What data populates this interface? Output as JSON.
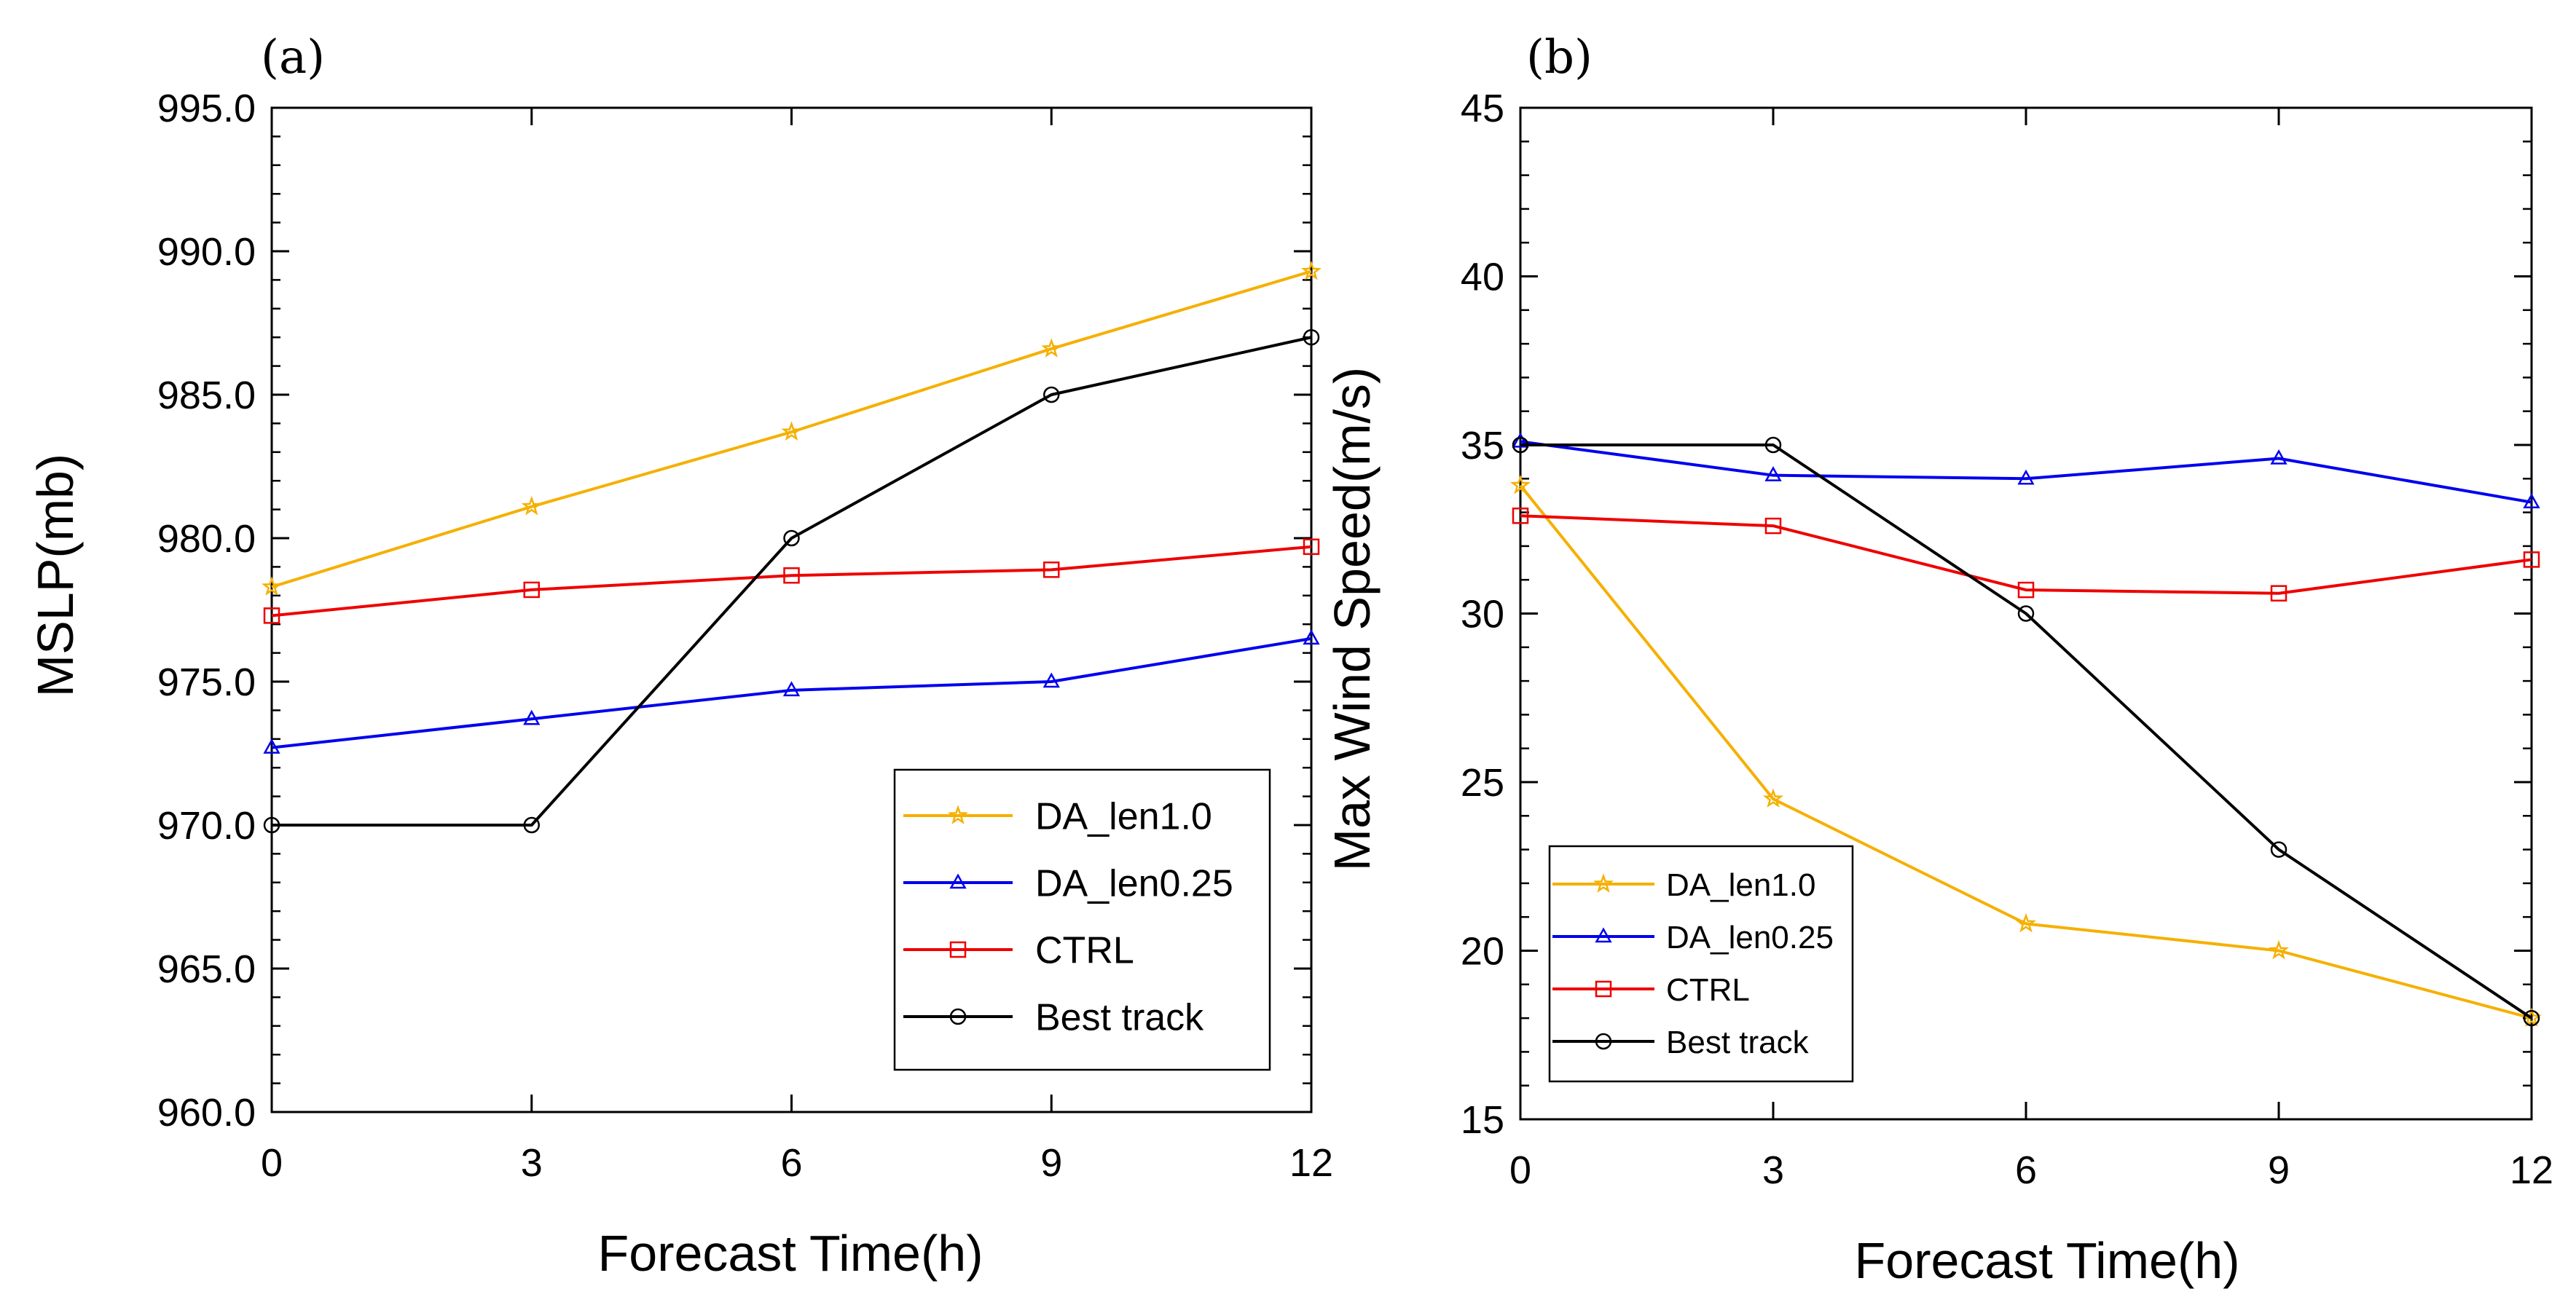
{
  "chart_data": [
    {
      "type": "line",
      "panel_label": "(a)",
      "xlabel": "Forecast Time(h)",
      "ylabel": "MSLP(mb)",
      "x": [
        0,
        3,
        6,
        9,
        12
      ],
      "xticks": [
        "0",
        "3",
        "6",
        "9",
        "12"
      ],
      "yticks": [
        "960.0",
        "965.0",
        "970.0",
        "975.0",
        "980.0",
        "985.0",
        "990.0",
        "995.0"
      ],
      "xlim": [
        0,
        12
      ],
      "ylim": [
        960,
        995
      ],
      "legend_position": "bottom-right",
      "series": [
        {
          "name": "DA_len1.0",
          "color": "#F5B000",
          "marker": "star",
          "values": [
            978.3,
            981.1,
            983.7,
            986.6,
            989.3
          ]
        },
        {
          "name": "DA_len0.25",
          "color": "#0000EE",
          "marker": "triangle",
          "values": [
            972.7,
            973.7,
            974.7,
            975.0,
            976.5
          ]
        },
        {
          "name": "CTRL",
          "color": "#EE0000",
          "marker": "square",
          "values": [
            977.3,
            978.2,
            978.7,
            978.9,
            979.7
          ]
        },
        {
          "name": "Best track",
          "color": "#000000",
          "marker": "circle",
          "values": [
            970.0,
            970.0,
            980.0,
            985.0,
            987.0
          ]
        }
      ]
    },
    {
      "type": "line",
      "panel_label": "(b)",
      "xlabel": "Forecast Time(h)",
      "ylabel": "Max Wind Speed(m/s)",
      "x": [
        0,
        3,
        6,
        9,
        12
      ],
      "xticks": [
        "0",
        "3",
        "6",
        "9",
        "12"
      ],
      "yticks": [
        "15",
        "20",
        "25",
        "30",
        "35",
        "40",
        "45"
      ],
      "xlim": [
        0,
        12
      ],
      "ylim": [
        15,
        45
      ],
      "legend_position": "bottom-left",
      "series": [
        {
          "name": "DA_len1.0",
          "color": "#F5B000",
          "marker": "star",
          "values": [
            33.8,
            24.5,
            20.8,
            20.0,
            18.0
          ]
        },
        {
          "name": "DA_len0.25",
          "color": "#0000EE",
          "marker": "triangle",
          "values": [
            35.1,
            34.1,
            34.0,
            34.6,
            33.3
          ]
        },
        {
          "name": "CTRL",
          "color": "#EE0000",
          "marker": "square",
          "values": [
            32.9,
            32.6,
            30.7,
            30.6,
            31.6
          ]
        },
        {
          "name": "Best track",
          "color": "#000000",
          "marker": "circle",
          "values": [
            35.0,
            35.0,
            30.0,
            23.0,
            18.0
          ]
        }
      ]
    }
  ]
}
